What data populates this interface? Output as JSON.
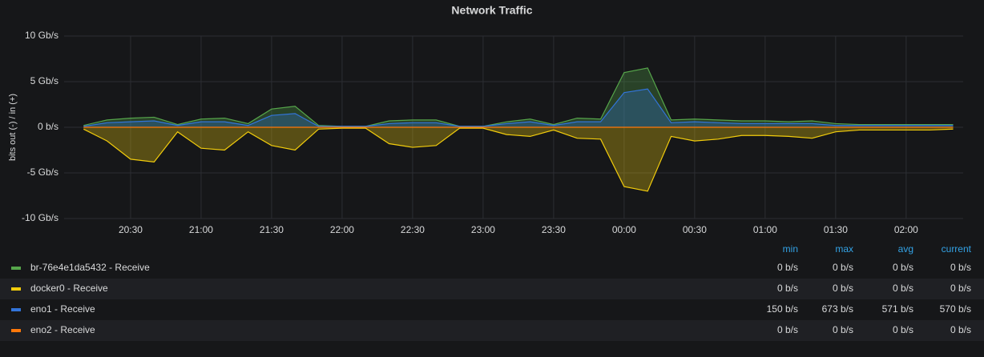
{
  "chart_data": {
    "type": "line",
    "title": "Network Traffic",
    "y_label": "bits out (-) / in (+)",
    "categories": [
      "20:10",
      "20:20",
      "20:30",
      "20:40",
      "20:50",
      "21:00",
      "21:10",
      "21:20",
      "21:30",
      "21:40",
      "21:50",
      "22:00",
      "22:10",
      "22:20",
      "22:30",
      "22:40",
      "22:50",
      "23:00",
      "23:10",
      "23:20",
      "23:30",
      "23:40",
      "23:50",
      "00:00",
      "00:10",
      "00:20",
      "00:30",
      "00:40",
      "00:50",
      "01:00",
      "01:10",
      "01:20",
      "01:30",
      "01:40",
      "01:50",
      "02:00",
      "02:10",
      "02:20"
    ],
    "xticks": [
      "20:30",
      "21:00",
      "21:30",
      "22:00",
      "22:30",
      "23:00",
      "23:30",
      "00:00",
      "00:30",
      "01:00",
      "01:30",
      "02:00"
    ],
    "ylim": [
      -10,
      10
    ],
    "yticks": [
      {
        "value": -10,
        "label": "-10 Gb/s"
      },
      {
        "value": -5,
        "label": "-5 Gb/s"
      },
      {
        "value": 0,
        "label": "0 b/s"
      },
      {
        "value": 5,
        "label": "5 Gb/s"
      },
      {
        "value": 10,
        "label": "10 Gb/s"
      }
    ],
    "grid": true,
    "stat_headers": [
      "min",
      "max",
      "avg",
      "current"
    ],
    "series": [
      {
        "name": "br-76e4e1da5432 - Receive",
        "color": "#56a64b",
        "values": [
          0.2,
          0.8,
          1.0,
          1.1,
          0.3,
          0.9,
          1.0,
          0.4,
          2.0,
          2.3,
          0.2,
          0.1,
          0.1,
          0.7,
          0.8,
          0.8,
          0.1,
          0.1,
          0.6,
          0.9,
          0.3,
          1.0,
          0.9,
          6.0,
          6.5,
          0.8,
          0.9,
          0.8,
          0.7,
          0.7,
          0.6,
          0.7,
          0.4,
          0.3,
          0.3,
          0.3,
          0.3,
          0.3
        ],
        "stats": [
          "0 b/s",
          "0 b/s",
          "0 b/s",
          "0 b/s"
        ]
      },
      {
        "name": "docker0 - Receive",
        "color": "#f2cc0c",
        "values": [
          -0.2,
          -1.5,
          -3.5,
          -3.8,
          -0.5,
          -2.3,
          -2.5,
          -0.5,
          -2.0,
          -2.5,
          -0.2,
          -0.1,
          -0.1,
          -1.8,
          -2.2,
          -2.0,
          -0.1,
          -0.1,
          -0.8,
          -1.0,
          -0.3,
          -1.2,
          -1.3,
          -6.5,
          -7.0,
          -1.0,
          -1.5,
          -1.3,
          -0.9,
          -0.9,
          -1.0,
          -1.2,
          -0.5,
          -0.3,
          -0.3,
          -0.3,
          -0.3,
          -0.2
        ],
        "stats": [
          "0 b/s",
          "0 b/s",
          "0 b/s",
          "0 b/s"
        ]
      },
      {
        "name": "eno1 - Receive",
        "color": "#3274d9",
        "values": [
          0.1,
          0.5,
          0.6,
          0.7,
          0.2,
          0.6,
          0.6,
          0.2,
          1.3,
          1.5,
          0.1,
          0.1,
          0.1,
          0.4,
          0.5,
          0.5,
          0.1,
          0.1,
          0.4,
          0.6,
          0.2,
          0.6,
          0.6,
          3.8,
          4.2,
          0.5,
          0.6,
          0.5,
          0.4,
          0.4,
          0.4,
          0.4,
          0.2,
          0.2,
          0.2,
          0.2,
          0.2,
          0.2
        ],
        "stats": [
          "150 b/s",
          "673 b/s",
          "571 b/s",
          "570 b/s"
        ]
      },
      {
        "name": "eno2 - Receive",
        "color": "#ff780a",
        "values": [
          0,
          0,
          0,
          0,
          0,
          0,
          0,
          0,
          0,
          0,
          0,
          0,
          0,
          0,
          0,
          0,
          0,
          0,
          0,
          0,
          0,
          0,
          0,
          0,
          0,
          0,
          0,
          0,
          0,
          0,
          0,
          0,
          0,
          0,
          0,
          0,
          0,
          0
        ],
        "stats": [
          "0 b/s",
          "0 b/s",
          "0 b/s",
          "0 b/s"
        ]
      }
    ]
  }
}
